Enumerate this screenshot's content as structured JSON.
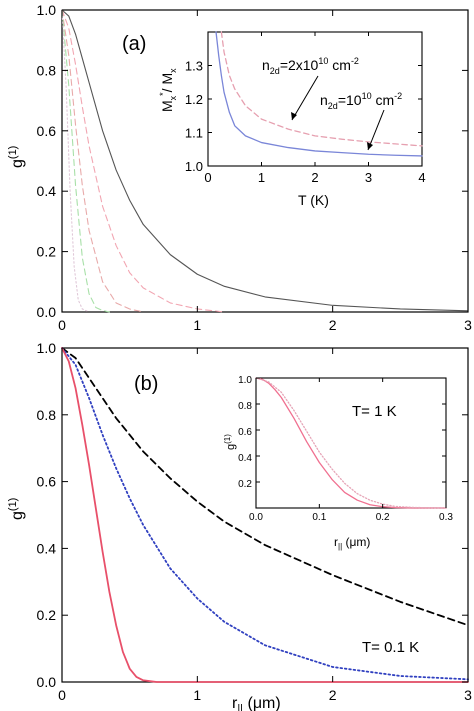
{
  "figure_title": "",
  "chart_data": [
    {
      "type": "line",
      "panel_label": "(a)",
      "xlabel": "",
      "ylabel": "g(1)",
      "ylabel_main": "g",
      "ylabel_sup": "(1)",
      "xlim": [
        0,
        3
      ],
      "ylim": [
        0,
        1
      ],
      "xticks": [
        "0",
        "1",
        "2",
        "3"
      ],
      "yticks": [
        "0.0",
        "0.2",
        "0.4",
        "0.6",
        "0.8",
        "1.0"
      ],
      "grid": false,
      "legend": "none",
      "series": [
        {
          "color": "#555555",
          "style": "solid",
          "x": [
            0,
            0.05,
            0.1,
            0.15,
            0.2,
            0.3,
            0.4,
            0.5,
            0.6,
            0.8,
            1.0,
            1.2,
            1.5,
            2.0,
            2.5,
            3.0
          ],
          "values": [
            1.0,
            0.98,
            0.92,
            0.84,
            0.76,
            0.6,
            0.47,
            0.37,
            0.29,
            0.19,
            0.125,
            0.085,
            0.05,
            0.022,
            0.01,
            0.004
          ]
        },
        {
          "color": "#f2a6b2",
          "style": "dashed",
          "x": [
            0,
            0.05,
            0.1,
            0.15,
            0.2,
            0.3,
            0.4,
            0.5,
            0.6,
            0.8,
            1.0,
            1.2
          ],
          "values": [
            1.0,
            0.94,
            0.82,
            0.68,
            0.55,
            0.35,
            0.22,
            0.13,
            0.08,
            0.03,
            0.01,
            0.0
          ]
        },
        {
          "color": "#e8aaaa",
          "style": "dashed",
          "x": [
            0,
            0.05,
            0.1,
            0.15,
            0.2,
            0.3,
            0.4,
            0.5,
            0.6
          ],
          "values": [
            1.0,
            0.85,
            0.62,
            0.42,
            0.27,
            0.1,
            0.03,
            0.01,
            0.0
          ]
        },
        {
          "color": "#a8e0a8",
          "style": "dashed",
          "x": [
            0,
            0.05,
            0.1,
            0.15,
            0.2,
            0.25,
            0.3,
            0.35
          ],
          "values": [
            1.0,
            0.75,
            0.42,
            0.18,
            0.06,
            0.015,
            0.005,
            0.0
          ]
        },
        {
          "color": "#e0c8d8",
          "style": "dotted",
          "x": [
            0,
            0.03,
            0.06,
            0.09,
            0.12,
            0.15,
            0.2
          ],
          "values": [
            1.0,
            0.75,
            0.4,
            0.15,
            0.04,
            0.01,
            0.0
          ]
        }
      ],
      "inset": {
        "xlabel": "T (K)",
        "ylabel": "M*x/Mx",
        "ylabel_parts": [
          "M",
          "x",
          "*",
          "/ M",
          "x"
        ],
        "xlim": [
          0,
          4
        ],
        "ylim": [
          1.0,
          1.4
        ],
        "xticks": [
          "0",
          "1",
          "2",
          "3",
          "4"
        ],
        "yticks": [
          "1.0",
          "1.1",
          "1.2",
          "1.3"
        ],
        "annotations": [
          {
            "text": "n2d=2x10^10 cm^-2",
            "parts": [
              "n",
              "2d",
              "=2x10",
              "10",
              " cm",
              "-2"
            ]
          },
          {
            "text": "n2d=10^10 cm^-2",
            "parts": [
              "n",
              "2d",
              "=10",
              "10",
              " cm",
              "-2"
            ]
          }
        ],
        "series": [
          {
            "color": "#7a86d8",
            "style": "solid",
            "x": [
              0.15,
              0.2,
              0.25,
              0.3,
              0.4,
              0.5,
              0.7,
              1.0,
              1.5,
              2.0,
              2.5,
              3.0,
              3.5,
              4.0
            ],
            "values": [
              1.4,
              1.33,
              1.27,
              1.22,
              1.16,
              1.12,
              1.09,
              1.07,
              1.055,
              1.045,
              1.04,
              1.035,
              1.032,
              1.03
            ]
          },
          {
            "color": "#e6a0b0",
            "style": "dashed",
            "x": [
              0.25,
              0.3,
              0.4,
              0.5,
              0.7,
              1.0,
              1.5,
              2.0,
              2.5,
              3.0,
              3.5,
              4.0
            ],
            "values": [
              1.4,
              1.34,
              1.27,
              1.23,
              1.18,
              1.14,
              1.11,
              1.09,
              1.08,
              1.072,
              1.066,
              1.06
            ]
          }
        ]
      }
    },
    {
      "type": "line",
      "panel_label": "(b)",
      "xlabel": "r|| (μm)",
      "xlabel_parts": [
        "r",
        "||",
        " (μm)"
      ],
      "ylabel": "g(1)",
      "ylabel_main": "g",
      "ylabel_sup": "(1)",
      "xlim": [
        0,
        3
      ],
      "ylim": [
        0,
        1
      ],
      "xticks": [
        "0",
        "1",
        "2",
        "3"
      ],
      "yticks": [
        "0.0",
        "0.2",
        "0.4",
        "0.6",
        "0.8",
        "1.0"
      ],
      "grid": false,
      "legend": "none",
      "annotation": "T= 0.1 K",
      "series": [
        {
          "color": "#000000",
          "style": "dashed",
          "x": [
            0,
            0.1,
            0.2,
            0.3,
            0.4,
            0.5,
            0.6,
            0.8,
            1.0,
            1.2,
            1.5,
            2.0,
            2.5,
            3.0
          ],
          "values": [
            1.0,
            0.97,
            0.91,
            0.85,
            0.79,
            0.74,
            0.69,
            0.61,
            0.54,
            0.48,
            0.41,
            0.32,
            0.24,
            0.17
          ]
        },
        {
          "color": "#3040c0",
          "style": "dotted",
          "x": [
            0,
            0.1,
            0.2,
            0.3,
            0.4,
            0.5,
            0.6,
            0.8,
            1.0,
            1.2,
            1.5,
            2.0,
            2.5,
            3.0
          ],
          "values": [
            1.0,
            0.95,
            0.85,
            0.74,
            0.64,
            0.55,
            0.47,
            0.34,
            0.25,
            0.18,
            0.11,
            0.045,
            0.018,
            0.008
          ]
        },
        {
          "color": "#e8506a",
          "style": "solid",
          "x": [
            0,
            0.05,
            0.1,
            0.15,
            0.2,
            0.25,
            0.3,
            0.35,
            0.4,
            0.45,
            0.5,
            0.55,
            0.6,
            0.7,
            3.0
          ],
          "values": [
            1.0,
            0.96,
            0.88,
            0.77,
            0.65,
            0.52,
            0.39,
            0.27,
            0.17,
            0.09,
            0.04,
            0.015,
            0.005,
            0.0,
            0.0
          ]
        }
      ],
      "inset": {
        "xlabel": "r|| (μm)",
        "xlabel_parts": [
          "r",
          "||",
          " (μm)"
        ],
        "ylabel": "g(1)",
        "ylabel_main": "g",
        "ylabel_sup": "(1)",
        "annotation": "T= 1 K",
        "xlim": [
          0,
          0.3
        ],
        "ylim": [
          0,
          1
        ],
        "xticks": [
          "0.0",
          "0.1",
          "0.2",
          "0.3"
        ],
        "yticks": [
          "0.2",
          "0.4",
          "0.6",
          "0.8",
          "1.0"
        ],
        "series": [
          {
            "color": "#f07090",
            "style": "solid",
            "x": [
              0,
              0.01,
              0.02,
              0.03,
              0.04,
              0.06,
              0.08,
              0.1,
              0.12,
              0.14,
              0.16,
              0.18,
              0.2,
              0.22,
              0.25,
              0.3
            ],
            "values": [
              1.0,
              0.99,
              0.96,
              0.91,
              0.85,
              0.69,
              0.51,
              0.35,
              0.22,
              0.12,
              0.06,
              0.025,
              0.01,
              0.003,
              0.0,
              0.0
            ]
          },
          {
            "color": "#e6a6b8",
            "style": "dotted",
            "x": [
              0,
              0.02,
              0.04,
              0.06,
              0.08,
              0.1,
              0.12,
              0.14,
              0.16,
              0.18,
              0.2,
              0.22,
              0.25,
              0.3
            ],
            "values": [
              1.0,
              0.97,
              0.89,
              0.75,
              0.59,
              0.43,
              0.3,
              0.19,
              0.11,
              0.06,
              0.03,
              0.012,
              0.004,
              0.0
            ]
          }
        ]
      }
    }
  ]
}
